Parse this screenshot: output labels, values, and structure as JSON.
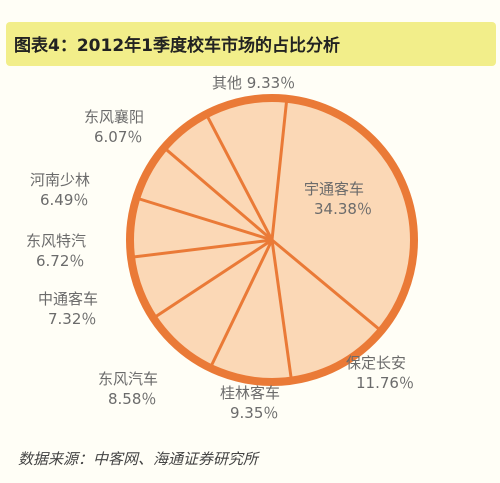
{
  "chart_data": {
    "type": "pie",
    "title": "图表4：2012年1季度校车市场的占比分析",
    "source": "数据来源：中客网、海通证券研究所",
    "unit": "%",
    "slices": [
      {
        "name": "宇通客车",
        "value": 34.38,
        "label": "34.38％"
      },
      {
        "name": "保定长安",
        "value": 11.76,
        "label": "11.76％"
      },
      {
        "name": "桂林客车",
        "value": 9.35,
        "label": "9.35％"
      },
      {
        "name": "东风汽车",
        "value": 8.58,
        "label": "8.58％"
      },
      {
        "name": "中通客车",
        "value": 7.32,
        "label": "7.32％"
      },
      {
        "name": "东风特汽",
        "value": 6.72,
        "label": "6.72％"
      },
      {
        "name": "河南少林",
        "value": 6.49,
        "label": "6.49％"
      },
      {
        "name": "东风襄阳",
        "value": 6.07,
        "label": "6.07％"
      },
      {
        "name": "其他",
        "value": 9.33,
        "label": "9.33％"
      }
    ]
  },
  "colors": {
    "background": "#fffef6",
    "title_band": "#f2ee8a",
    "pie_fill": "#fbd8b6",
    "pie_stroke": "#ea7a37",
    "label_text": "#6b6b6b"
  }
}
